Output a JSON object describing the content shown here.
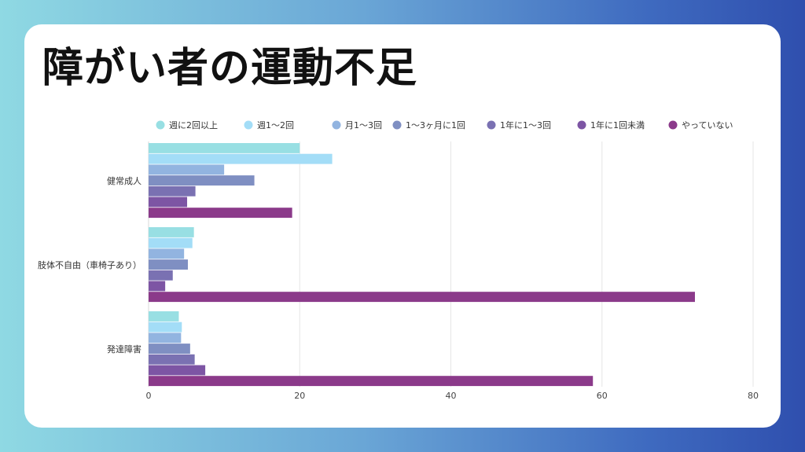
{
  "title": "障がい者の運動不足",
  "chart_data": {
    "type": "bar",
    "orientation": "horizontal",
    "title": "障がい者の運動不足",
    "categories": [
      "健常成人",
      "肢体不自由（車椅子あり）",
      "発達障害"
    ],
    "series": [
      {
        "name": "週に2回以上",
        "color": "#98dfe3",
        "values": [
          20,
          6,
          4
        ]
      },
      {
        "name": "週1～2回",
        "color": "#a3ddf7",
        "values": [
          24.3,
          5.8,
          4.4
        ]
      },
      {
        "name": "月1～3回",
        "color": "#92b4e0",
        "values": [
          10,
          4.7,
          4.3
        ]
      },
      {
        "name": "1～3ヶ月に1回",
        "color": "#7f8fc2",
        "values": [
          14,
          5.2,
          5.5
        ]
      },
      {
        "name": "1年に1～3回",
        "color": "#7a71b2",
        "values": [
          6.2,
          3.2,
          6.1
        ]
      },
      {
        "name": "1年に1回未満",
        "color": "#7d55a4",
        "values": [
          5.1,
          2.2,
          7.5
        ]
      },
      {
        "name": "やっていない",
        "color": "#8b3a8a",
        "values": [
          19,
          72.3,
          58.8
        ]
      }
    ],
    "xlim": [
      0,
      80
    ],
    "xticks": [
      0,
      20,
      40,
      60,
      80
    ],
    "grid": true,
    "legend": "top"
  }
}
